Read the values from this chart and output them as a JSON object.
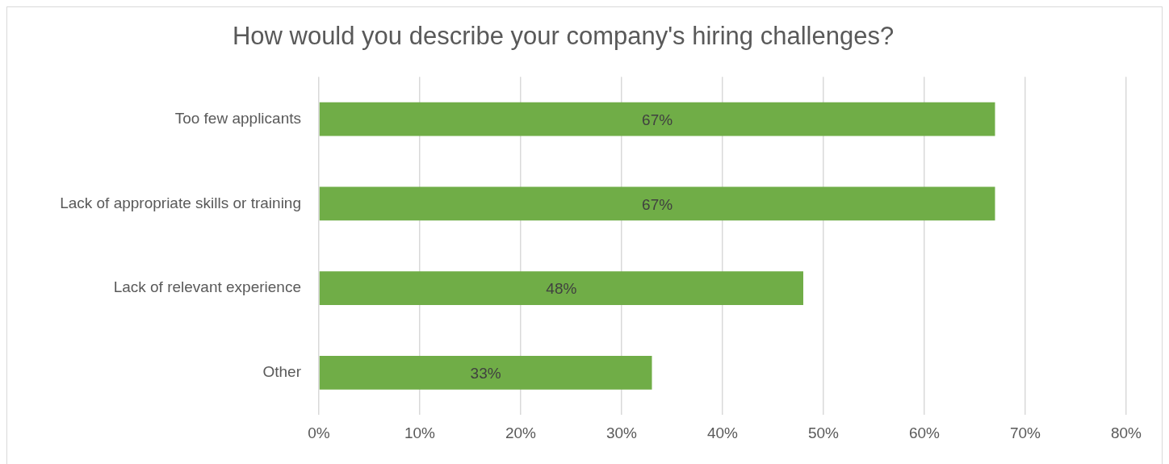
{
  "chart_data": {
    "type": "bar",
    "orientation": "horizontal",
    "title": "How would you describe your company's hiring challenges?",
    "categories": [
      "Too few applicants",
      "Lack of appropriate skills or training",
      "Lack of relevant experience",
      "Other"
    ],
    "values": [
      67,
      67,
      48,
      33
    ],
    "color": "#70ad47",
    "value_labels": [
      "67%",
      "67%",
      "48%",
      "33%"
    ],
    "xlim": [
      0,
      80
    ],
    "xticks": [
      {
        "value": 0,
        "label": "0%"
      },
      {
        "value": 10,
        "label": "10%"
      },
      {
        "value": 20,
        "label": "20%"
      },
      {
        "value": 30,
        "label": "30%"
      },
      {
        "value": 40,
        "label": "40%"
      },
      {
        "value": 50,
        "label": "50%"
      },
      {
        "value": 60,
        "label": "60%"
      },
      {
        "value": 70,
        "label": "70%"
      },
      {
        "value": 80,
        "label": "80%"
      }
    ],
    "grid": "x",
    "legend": false
  }
}
